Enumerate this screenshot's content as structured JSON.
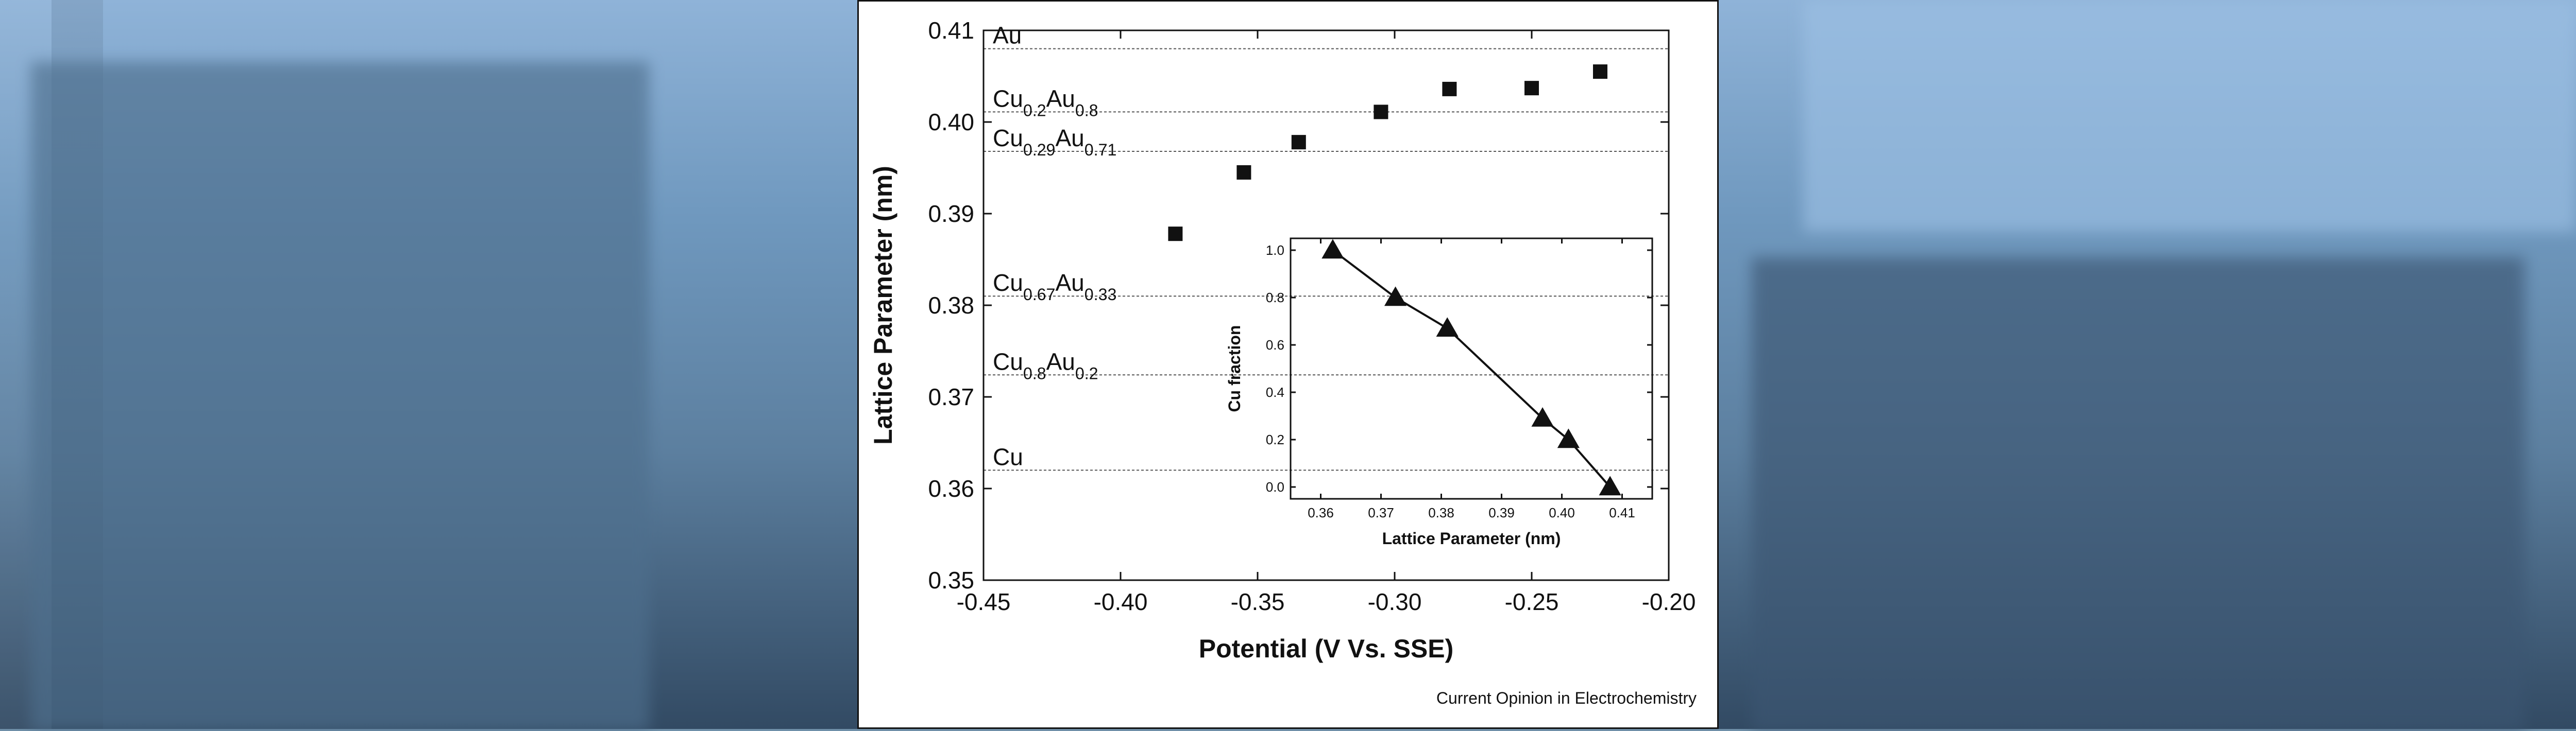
{
  "background": {
    "colors": [
      "#8fb3d8",
      "#6f98be",
      "#5c7f9f",
      "#324a63"
    ]
  },
  "caption": "Current Opinion in Electrochemistry",
  "chart_data": [
    {
      "type": "scatter",
      "xlabel": "Potential (V Vs. SSE)",
      "ylabel": "Lattice Parameter (nm)",
      "xlim": [
        -0.45,
        -0.2
      ],
      "ylim": [
        0.35,
        0.41
      ],
      "x_ticks": [
        "-0.45",
        "-0.40",
        "-0.35",
        "-0.30",
        "-0.25",
        "-0.20"
      ],
      "y_ticks": [
        "0.35",
        "0.36",
        "0.37",
        "0.38",
        "0.39",
        "0.40",
        "0.41"
      ],
      "series": [
        {
          "marker": "square",
          "x": [
            -0.38,
            -0.355,
            -0.335,
            -0.305,
            -0.28,
            -0.25,
            -0.225
          ],
          "y": [
            0.3878,
            0.3945,
            0.3978,
            0.4011,
            0.4036,
            0.4037,
            0.4055
          ]
        }
      ],
      "reference_lines": [
        {
          "base": "Au",
          "parts": [],
          "y": 0.408
        },
        {
          "base": "Cu",
          "parts": [
            [
              "0.2",
              "Au"
            ],
            [
              "0.8",
              ""
            ]
          ],
          "y": 0.4011
        },
        {
          "base": "Cu",
          "parts": [
            [
              "0.29",
              "Au"
            ],
            [
              "0.71",
              ""
            ]
          ],
          "y": 0.3968
        },
        {
          "base": "Cu",
          "parts": [
            [
              "0.67",
              "Au"
            ],
            [
              "0.33",
              ""
            ]
          ],
          "y": 0.381
        },
        {
          "base": "Cu",
          "parts": [
            [
              "0.8",
              "Au"
            ],
            [
              "0.2",
              ""
            ]
          ],
          "y": 0.3724
        },
        {
          "base": "Cu",
          "parts": [],
          "y": 0.362
        }
      ],
      "grid": false
    },
    {
      "type": "line",
      "xlabel": "Lattice Parameter (nm)",
      "ylabel": "Cu fraction",
      "xlim": [
        0.355,
        0.415
      ],
      "ylim": [
        -0.05,
        1.05
      ],
      "x_ticks": [
        "0.36",
        "0.37",
        "0.38",
        "0.39",
        "0.40",
        "0.41"
      ],
      "y_ticks": [
        "0.0",
        "0.2",
        "0.4",
        "0.6",
        "0.8",
        "1.0"
      ],
      "series": [
        {
          "marker": "triangle",
          "x": [
            0.362,
            0.3724,
            0.381,
            0.3968,
            0.4011,
            0.408
          ],
          "y": [
            1.0,
            0.8,
            0.67,
            0.29,
            0.2,
            0.0
          ]
        }
      ],
      "grid": false
    }
  ]
}
